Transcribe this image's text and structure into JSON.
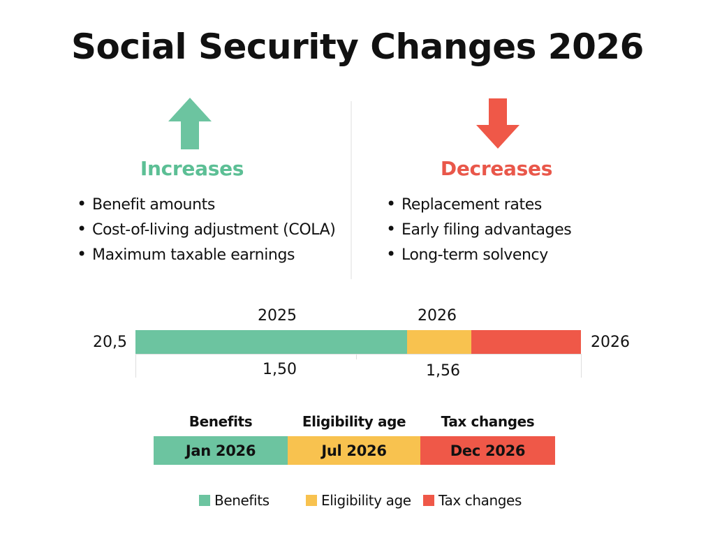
{
  "title": "Social Security Changes 2026",
  "colors": {
    "green": "#6cc4a0",
    "yellow": "#f8c24f",
    "red": "#ef5848",
    "inc_heading": "#5cbf95",
    "dec_heading": "#e9574a"
  },
  "increases": {
    "icon": "arrow-up-icon",
    "heading": "Increases",
    "items": [
      "Benefit amounts",
      "Cost-of-living adjustment (COLA)",
      "Maximum taxable earnings"
    ]
  },
  "decreases": {
    "icon": "arrow-down-icon",
    "heading": "Decreases",
    "items": [
      "Replacement rates",
      "Early filing advantages",
      "Long-term solvency"
    ]
  },
  "timeline": {
    "left_label": "20,5",
    "right_label": "2026",
    "top_labels": [
      "2025",
      "2026"
    ],
    "bottom_labels": [
      "1,50",
      "1,56"
    ]
  },
  "schedule": {
    "headers": [
      "Benefits",
      "Eligibility age",
      "Tax changes"
    ],
    "dates": [
      "Jan 2026",
      "Jul 2026",
      "Dec 2026"
    ]
  },
  "legend": [
    "Benefits",
    "Eligibility age",
    "Tax changes"
  ]
}
